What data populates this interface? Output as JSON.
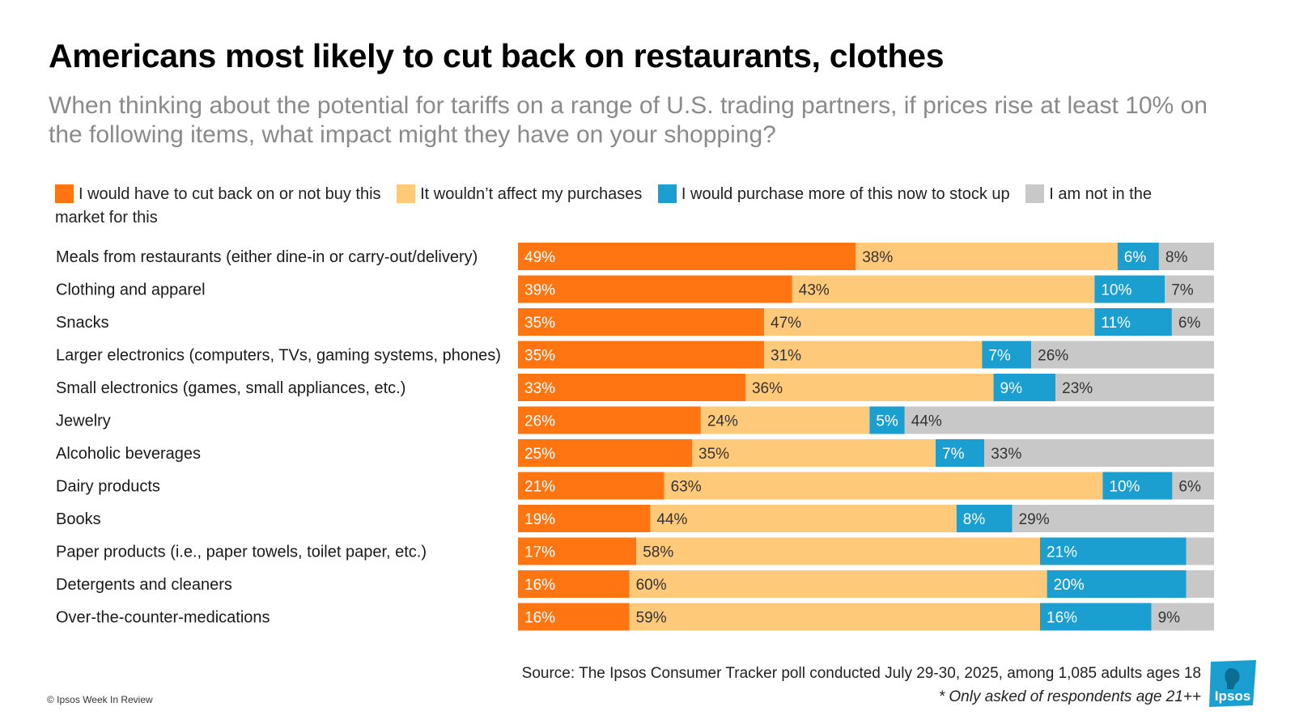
{
  "title": "Americans most likely to cut back on restaurants, clothes",
  "subtitle": "When thinking about the potential for tariffs on a range of U.S. trading partners, if prices rise at least 10% on the following items, what impact might they have on your shopping?",
  "colors": {
    "cut_back": "#ff7512",
    "no_effect": "#ffc97a",
    "stock_up": "#1b9fd1",
    "not_in_market": "#c8c8c8",
    "logo": "#1b9fd1"
  },
  "chart_data": {
    "type": "bar",
    "orientation": "horizontal",
    "stacked": true,
    "xlim": [
      0,
      100
    ],
    "legend_position": "top",
    "grid": false,
    "categories": [
      "Meals from restaurants (either dine-in or carry-out/delivery)",
      "Clothing and apparel",
      "Snacks",
      "Larger electronics (computers, TVs, gaming systems, phones)",
      "Small electronics (games, small appliances, etc.)",
      "Jewelry",
      "Alcoholic beverages",
      "Dairy products",
      "Books",
      "Paper products (i.e., paper towels, toilet paper, etc.)",
      "Detergents and cleaners",
      "Over-the-counter-medications"
    ],
    "series": [
      {
        "name": "I would have to cut back on or not buy this",
        "values": [
          49,
          39,
          35,
          35,
          33,
          26,
          25,
          21,
          19,
          17,
          16,
          16
        ]
      },
      {
        "name": "It wouldn’t affect my purchases",
        "values": [
          38,
          43,
          47,
          31,
          36,
          24,
          35,
          63,
          44,
          58,
          60,
          59
        ]
      },
      {
        "name": "I would purchase more of this now to stock up",
        "values": [
          6,
          10,
          11,
          7,
          9,
          5,
          7,
          10,
          8,
          21,
          20,
          16
        ]
      },
      {
        "name": "I am not in the market for this",
        "values": [
          8,
          7,
          6,
          26,
          23,
          44,
          33,
          6,
          29,
          4,
          4,
          9
        ]
      }
    ],
    "value_labels": [
      [
        "49%",
        "38%",
        "6%",
        "8%"
      ],
      [
        "39%",
        "43%",
        "10%",
        "7%"
      ],
      [
        "35%",
        "47%",
        "11%",
        "6%"
      ],
      [
        "35%",
        "31%",
        "7%",
        "26%"
      ],
      [
        "33%",
        "36%",
        "9%",
        "23%"
      ],
      [
        "26%",
        "24%",
        "5%",
        "44%"
      ],
      [
        "25%",
        "35%",
        "7%",
        "33%"
      ],
      [
        "21%",
        "63%",
        "10%",
        "6%"
      ],
      [
        "19%",
        "44%",
        "8%",
        "29%"
      ],
      [
        "17%",
        "58%",
        "21%",
        ""
      ],
      [
        "16%",
        "60%",
        "20%",
        ""
      ],
      [
        "16%",
        "59%",
        "16%",
        "9%"
      ]
    ]
  },
  "source": "Source: The Ipsos Consumer Tracker poll conducted July 29-30, 2025, among 1,085 adults ages 18",
  "note": "* Only asked of respondents age 21++",
  "copyright": "© Ipsos Week In Review",
  "logo": {
    "text": "Ipsos"
  }
}
